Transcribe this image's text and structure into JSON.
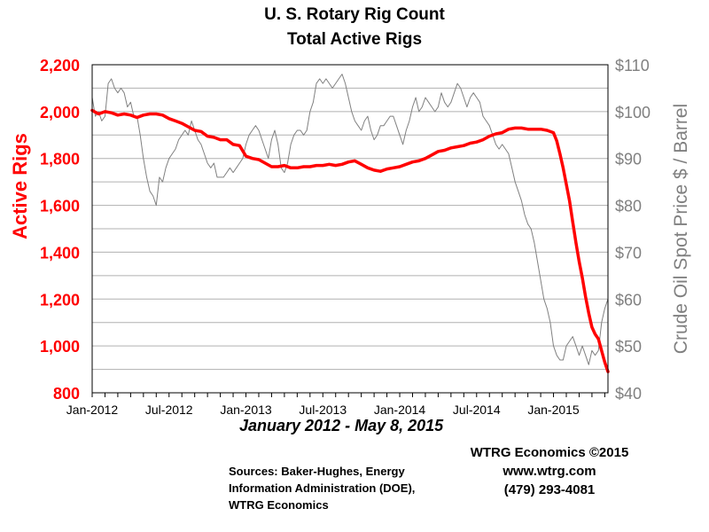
{
  "chart_data": {
    "type": "line",
    "title": [
      "U. S. Rotary Rig Count",
      "Total Active Rigs"
    ],
    "subtitle": "January 2012 - May 8, 2015",
    "y_left_label": "Active Rigs",
    "y_right_label": "Crude Oil Spot Price $ / Barrel",
    "y_left_range": [
      800,
      2200
    ],
    "y_right_range": [
      40,
      110
    ],
    "y_left_ticks": [
      "2,200",
      "2,000",
      "1,800",
      "1,600",
      "1,400",
      "1,200",
      "1,000",
      "800"
    ],
    "y_right_ticks": [
      "$110",
      "$100",
      "$90",
      "$80",
      "$70",
      "$60",
      "$50",
      "$40"
    ],
    "x_tick_labels": [
      "Jan-2012",
      "Jul-2012",
      "Jan-2013",
      "Jul-2013",
      "Jan-2014",
      "Jul-2014",
      "Jan-2015"
    ],
    "x_tick_months": [
      0,
      6,
      12,
      18,
      24,
      30,
      36
    ],
    "x_range_months": [
      0,
      40.25
    ],
    "series": [
      {
        "name": "Active Rigs",
        "axis": "left",
        "color": "#ff0000",
        "points": [
          [
            0,
            2005
          ],
          [
            0.5,
            1990
          ],
          [
            1,
            2000
          ],
          [
            1.5,
            1995
          ],
          [
            2,
            1985
          ],
          [
            2.5,
            1990
          ],
          [
            3,
            1985
          ],
          [
            3.5,
            1975
          ],
          [
            4,
            1985
          ],
          [
            4.5,
            1990
          ],
          [
            5,
            1990
          ],
          [
            5.5,
            1985
          ],
          [
            6,
            1970
          ],
          [
            6.5,
            1960
          ],
          [
            7,
            1950
          ],
          [
            7.5,
            1935
          ],
          [
            8,
            1920
          ],
          [
            8.5,
            1915
          ],
          [
            9,
            1895
          ],
          [
            9.5,
            1890
          ],
          [
            10,
            1880
          ],
          [
            10.5,
            1880
          ],
          [
            11,
            1860
          ],
          [
            11.5,
            1855
          ],
          [
            12,
            1810
          ],
          [
            12.5,
            1800
          ],
          [
            13,
            1795
          ],
          [
            13.5,
            1780
          ],
          [
            14,
            1765
          ],
          [
            14.5,
            1765
          ],
          [
            15,
            1770
          ],
          [
            15.5,
            1760
          ],
          [
            16,
            1760
          ],
          [
            16.5,
            1765
          ],
          [
            17,
            1765
          ],
          [
            17.5,
            1770
          ],
          [
            18,
            1770
          ],
          [
            18.5,
            1775
          ],
          [
            19,
            1770
          ],
          [
            19.5,
            1775
          ],
          [
            20,
            1785
          ],
          [
            20.5,
            1790
          ],
          [
            21,
            1775
          ],
          [
            21.5,
            1760
          ],
          [
            22,
            1750
          ],
          [
            22.5,
            1745
          ],
          [
            23,
            1755
          ],
          [
            23.5,
            1760
          ],
          [
            24,
            1765
          ],
          [
            24.5,
            1775
          ],
          [
            25,
            1785
          ],
          [
            25.5,
            1790
          ],
          [
            26,
            1800
          ],
          [
            26.5,
            1815
          ],
          [
            27,
            1830
          ],
          [
            27.5,
            1835
          ],
          [
            28,
            1845
          ],
          [
            28.5,
            1850
          ],
          [
            29,
            1855
          ],
          [
            29.5,
            1865
          ],
          [
            30,
            1870
          ],
          [
            30.5,
            1880
          ],
          [
            31,
            1895
          ],
          [
            31.5,
            1905
          ],
          [
            32,
            1910
          ],
          [
            32.5,
            1925
          ],
          [
            33,
            1930
          ],
          [
            33.5,
            1930
          ],
          [
            34,
            1925
          ],
          [
            34.5,
            1925
          ],
          [
            35,
            1925
          ],
          [
            35.5,
            1920
          ],
          [
            36,
            1910
          ],
          [
            36.25,
            1875
          ],
          [
            36.5,
            1820
          ],
          [
            36.75,
            1760
          ],
          [
            37,
            1690
          ],
          [
            37.25,
            1620
          ],
          [
            37.5,
            1530
          ],
          [
            37.75,
            1440
          ],
          [
            38,
            1360
          ],
          [
            38.25,
            1290
          ],
          [
            38.5,
            1210
          ],
          [
            38.75,
            1140
          ],
          [
            39,
            1080
          ],
          [
            39.25,
            1050
          ],
          [
            39.5,
            1030
          ],
          [
            39.75,
            980
          ],
          [
            40,
            930
          ],
          [
            40.25,
            890
          ]
        ]
      },
      {
        "name": "Crude Oil Spot Price",
        "axis": "right",
        "color": "#808080",
        "points": [
          [
            0,
            103
          ],
          [
            0.25,
            99
          ],
          [
            0.5,
            100
          ],
          [
            0.75,
            98
          ],
          [
            1,
            99
          ],
          [
            1.25,
            106
          ],
          [
            1.5,
            107
          ],
          [
            1.75,
            105
          ],
          [
            2,
            104
          ],
          [
            2.25,
            105
          ],
          [
            2.5,
            104
          ],
          [
            2.75,
            101
          ],
          [
            3,
            102
          ],
          [
            3.25,
            99
          ],
          [
            3.5,
            99
          ],
          [
            3.75,
            95
          ],
          [
            4,
            90
          ],
          [
            4.25,
            86
          ],
          [
            4.5,
            83
          ],
          [
            4.75,
            82
          ],
          [
            5,
            80
          ],
          [
            5.25,
            86
          ],
          [
            5.5,
            85
          ],
          [
            5.75,
            88
          ],
          [
            6,
            90
          ],
          [
            6.25,
            91
          ],
          [
            6.5,
            92
          ],
          [
            6.75,
            94
          ],
          [
            7,
            95
          ],
          [
            7.25,
            96
          ],
          [
            7.5,
            95
          ],
          [
            7.75,
            98
          ],
          [
            8,
            96
          ],
          [
            8.25,
            94
          ],
          [
            8.5,
            93
          ],
          [
            8.75,
            91
          ],
          [
            9,
            89
          ],
          [
            9.25,
            88
          ],
          [
            9.5,
            89
          ],
          [
            9.75,
            86
          ],
          [
            10,
            86
          ],
          [
            10.25,
            86
          ],
          [
            10.5,
            87
          ],
          [
            10.75,
            88
          ],
          [
            11,
            87
          ],
          [
            11.25,
            88
          ],
          [
            11.5,
            89
          ],
          [
            11.75,
            90
          ],
          [
            12,
            93
          ],
          [
            12.25,
            95
          ],
          [
            12.5,
            96
          ],
          [
            12.75,
            97
          ],
          [
            13,
            96
          ],
          [
            13.25,
            94
          ],
          [
            13.5,
            92
          ],
          [
            13.75,
            90
          ],
          [
            14,
            94
          ],
          [
            14.25,
            96
          ],
          [
            14.5,
            93
          ],
          [
            14.75,
            88
          ],
          [
            15,
            87
          ],
          [
            15.25,
            89
          ],
          [
            15.5,
            93
          ],
          [
            15.75,
            95
          ],
          [
            16,
            96
          ],
          [
            16.25,
            96
          ],
          [
            16.5,
            95
          ],
          [
            16.75,
            96
          ],
          [
            17,
            100
          ],
          [
            17.25,
            102
          ],
          [
            17.5,
            106
          ],
          [
            17.75,
            107
          ],
          [
            18,
            106
          ],
          [
            18.25,
            107
          ],
          [
            18.5,
            106
          ],
          [
            18.75,
            105
          ],
          [
            19,
            106
          ],
          [
            19.25,
            107
          ],
          [
            19.5,
            108
          ],
          [
            19.75,
            106
          ],
          [
            20,
            103
          ],
          [
            20.25,
            100
          ],
          [
            20.5,
            98
          ],
          [
            20.75,
            97
          ],
          [
            21,
            96
          ],
          [
            21.25,
            98
          ],
          [
            21.5,
            99
          ],
          [
            21.75,
            96
          ],
          [
            22,
            94
          ],
          [
            22.25,
            95
          ],
          [
            22.5,
            97
          ],
          [
            22.75,
            97
          ],
          [
            23,
            98
          ],
          [
            23.25,
            99
          ],
          [
            23.5,
            99
          ],
          [
            23.75,
            97
          ],
          [
            24,
            95
          ],
          [
            24.25,
            93
          ],
          [
            24.5,
            96
          ],
          [
            24.75,
            98
          ],
          [
            25,
            101
          ],
          [
            25.25,
            103
          ],
          [
            25.5,
            100
          ],
          [
            25.75,
            101
          ],
          [
            26,
            103
          ],
          [
            26.25,
            102
          ],
          [
            26.5,
            101
          ],
          [
            26.75,
            100
          ],
          [
            27,
            101
          ],
          [
            27.25,
            104
          ],
          [
            27.5,
            102
          ],
          [
            27.75,
            101
          ],
          [
            28,
            102
          ],
          [
            28.25,
            104
          ],
          [
            28.5,
            106
          ],
          [
            28.75,
            105
          ],
          [
            29,
            103
          ],
          [
            29.25,
            101
          ],
          [
            29.5,
            103
          ],
          [
            29.75,
            104
          ],
          [
            30,
            103
          ],
          [
            30.25,
            102
          ],
          [
            30.5,
            99
          ],
          [
            30.75,
            98
          ],
          [
            31,
            97
          ],
          [
            31.25,
            95
          ],
          [
            31.5,
            93
          ],
          [
            31.75,
            92
          ],
          [
            32,
            93
          ],
          [
            32.25,
            92
          ],
          [
            32.5,
            91
          ],
          [
            32.75,
            88
          ],
          [
            33,
            85
          ],
          [
            33.25,
            83
          ],
          [
            33.5,
            81
          ],
          [
            33.75,
            78
          ],
          [
            34,
            76
          ],
          [
            34.25,
            75
          ],
          [
            34.5,
            72
          ],
          [
            34.75,
            68
          ],
          [
            35,
            64
          ],
          [
            35.25,
            60
          ],
          [
            35.5,
            58
          ],
          [
            35.75,
            55
          ],
          [
            36,
            50
          ],
          [
            36.25,
            48
          ],
          [
            36.5,
            47
          ],
          [
            36.75,
            47
          ],
          [
            37,
            50
          ],
          [
            37.25,
            51
          ],
          [
            37.5,
            52
          ],
          [
            37.75,
            50
          ],
          [
            38,
            48
          ],
          [
            38.25,
            50
          ],
          [
            38.5,
            48
          ],
          [
            38.75,
            46
          ],
          [
            39,
            49
          ],
          [
            39.25,
            48
          ],
          [
            39.5,
            49
          ],
          [
            39.75,
            55
          ],
          [
            40,
            58
          ],
          [
            40.25,
            60
          ]
        ]
      }
    ]
  },
  "credit": "WTRG Economics  ©2015",
  "contact": {
    "url": "www.wtrg.com",
    "phone": "(479) 293-4081"
  },
  "sources": [
    "Sources: Baker-Hughes, Energy",
    "Information Administration (DOE),",
    "WTRG Economics"
  ],
  "colors": {
    "rigs": "#ff0000",
    "oil": "#808080",
    "grid": "#b0b0b0",
    "axis": "#000000"
  }
}
